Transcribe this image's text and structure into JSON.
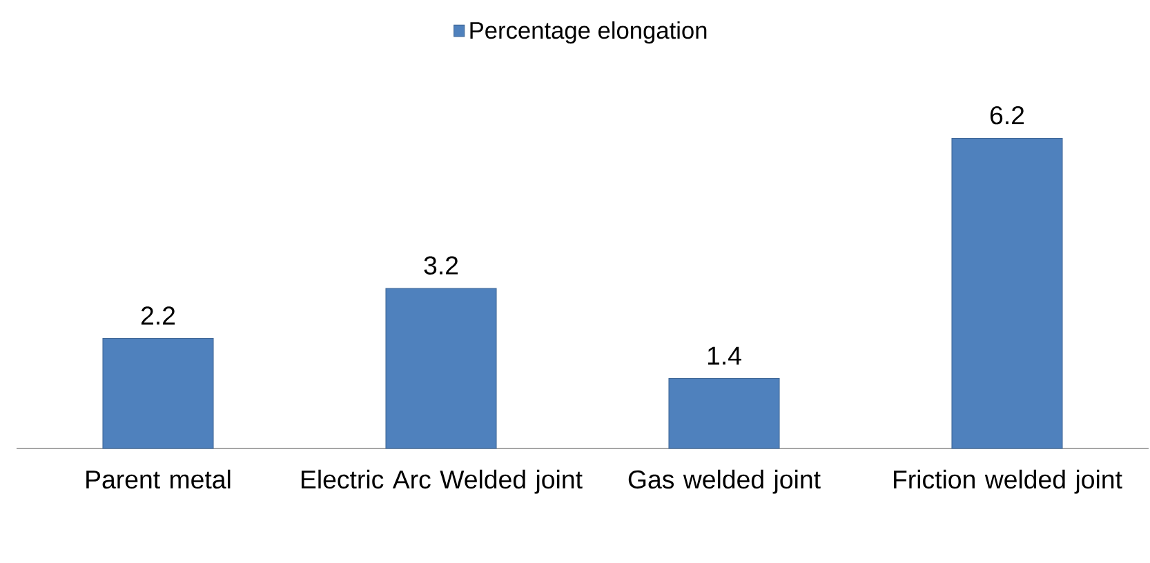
{
  "chart_data": {
    "type": "bar",
    "categories": [
      "Parent metal",
      "Electric Arc Welded joint",
      "Gas welded joint",
      "Friction welded joint"
    ],
    "series": [
      {
        "name": "Percentage elongation",
        "color": "#4f81bd",
        "values": [
          2.2,
          3.2,
          1.4,
          6.2
        ]
      }
    ],
    "data_labels": true,
    "legend": "top"
  }
}
